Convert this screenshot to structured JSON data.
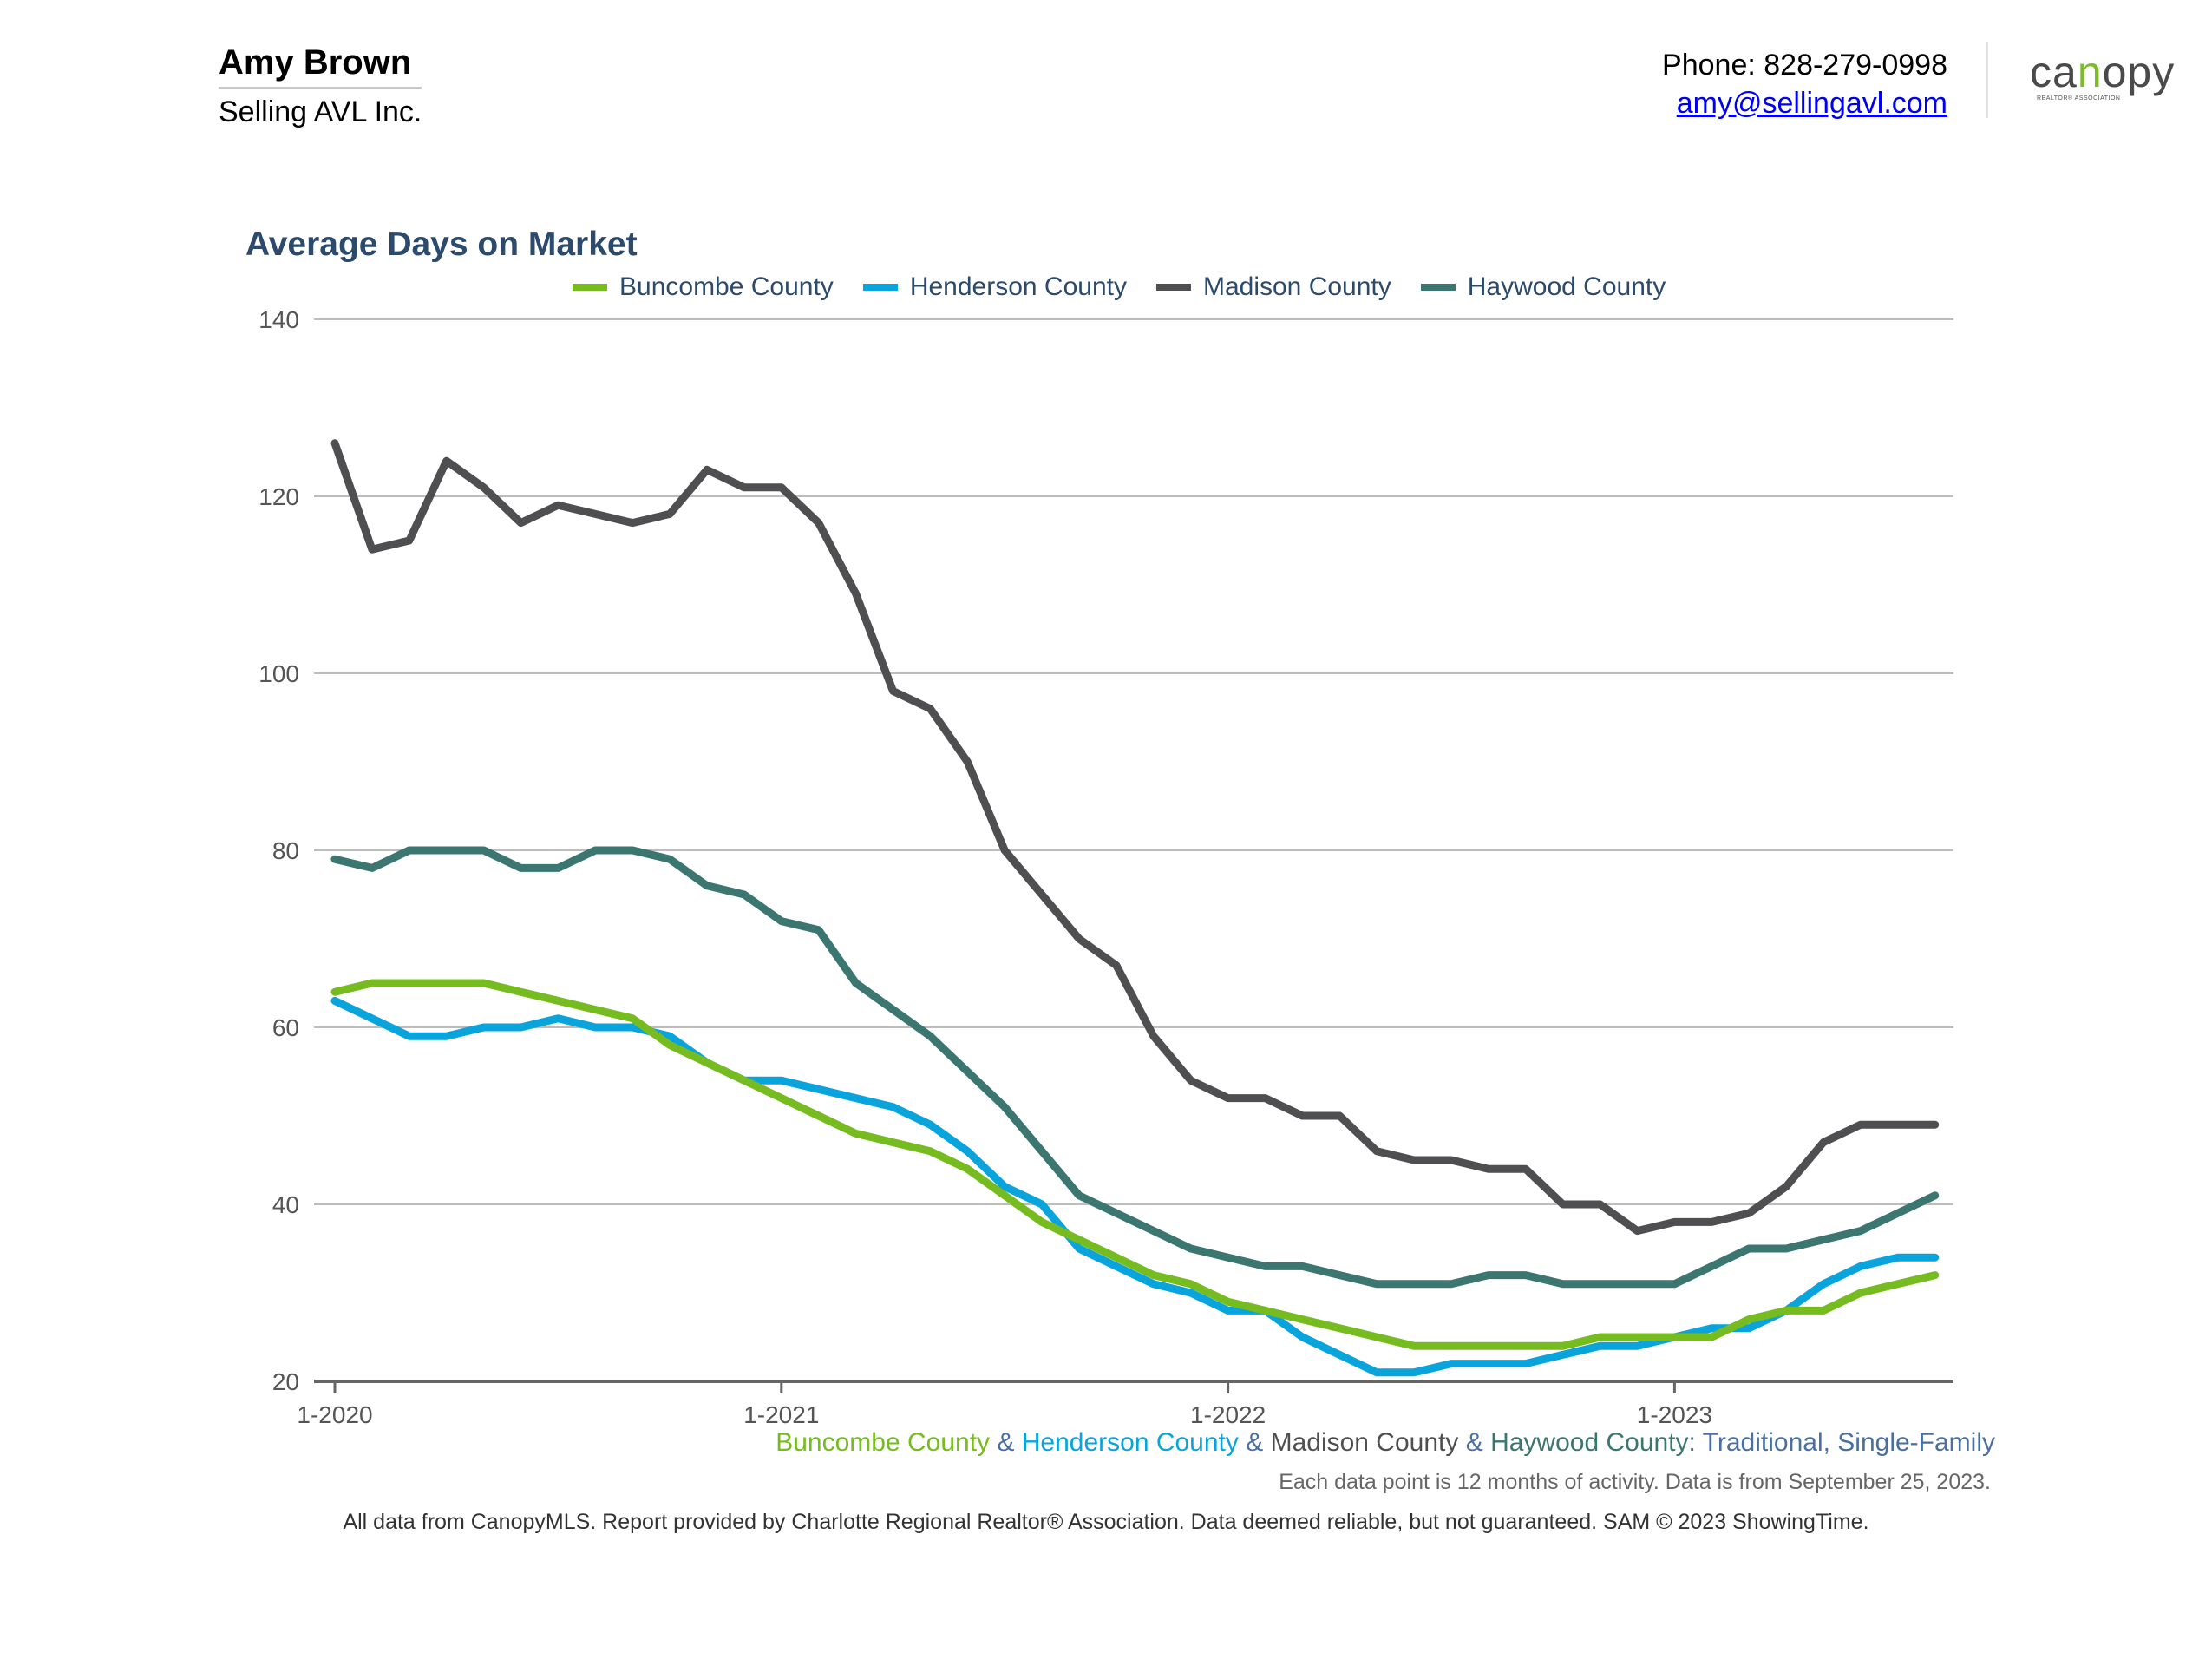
{
  "header": {
    "agent_name": "Amy Brown",
    "company": "Selling AVL Inc.",
    "phone": "Phone: 828-279-0998",
    "email": "amy@sellingavl.com",
    "logo_text_pre": "ca",
    "logo_text_accent": "n",
    "logo_text_post": "opy",
    "logo_subtext": "REALTOR® ASSOCIATION"
  },
  "colors": {
    "buncombe": "#76bc21",
    "henderson": "#0aa4dc",
    "madison": "#4f4f51",
    "haywood": "#3b7770",
    "title": "#2c4a6b"
  },
  "subtitle": {
    "parts": [
      {
        "text": "Buncombe County",
        "color": "#76bc21"
      },
      {
        "text": " & ",
        "color": "#4a6fa0"
      },
      {
        "text": "Henderson County",
        "color": "#0aa4dc"
      },
      {
        "text": " & ",
        "color": "#4a6fa0"
      },
      {
        "text": "Madison County",
        "color": "#4f4f51"
      },
      {
        "text": " & ",
        "color": "#4a6fa0"
      },
      {
        "text": "Haywood County",
        "color": "#3b7770"
      },
      {
        "text": ": Traditional, Single-Family",
        "color": "#4a6fa0"
      }
    ]
  },
  "note": "Each data point is 12 months of activity. Data is from September 25, 2023.",
  "footer": "All data from CanopyMLS. Report provided by Charlotte Regional Realtor® Association. Data deemed reliable, but not guaranteed. SAM © 2023 ShowingTime.",
  "chart_data": {
    "type": "line",
    "title": "Average Days on Market",
    "xlabel": "",
    "ylabel": "",
    "ylim": [
      20,
      140
    ],
    "yticks": [
      20,
      40,
      60,
      80,
      100,
      120,
      140
    ],
    "xticks": [
      "1-2020",
      "1-2021",
      "1-2022",
      "1-2023"
    ],
    "x": [
      "1-2020",
      "2-2020",
      "3-2020",
      "4-2020",
      "5-2020",
      "6-2020",
      "7-2020",
      "8-2020",
      "9-2020",
      "10-2020",
      "11-2020",
      "12-2020",
      "1-2021",
      "2-2021",
      "3-2021",
      "4-2021",
      "5-2021",
      "6-2021",
      "7-2021",
      "8-2021",
      "9-2021",
      "10-2021",
      "11-2021",
      "12-2021",
      "1-2022",
      "2-2022",
      "3-2022",
      "4-2022",
      "5-2022",
      "6-2022",
      "7-2022",
      "8-2022",
      "9-2022",
      "10-2022",
      "11-2022",
      "12-2022",
      "1-2023",
      "2-2023",
      "3-2023",
      "4-2023",
      "5-2023",
      "6-2023",
      "7-2023",
      "8-2023"
    ],
    "grid": true,
    "legend_position": "top",
    "series": [
      {
        "name": "Buncombe County",
        "color": "#76bc21",
        "values": [
          64,
          65,
          65,
          65,
          65,
          64,
          63,
          62,
          61,
          58,
          56,
          54,
          52,
          50,
          48,
          47,
          46,
          44,
          41,
          38,
          36,
          34,
          32,
          31,
          29,
          28,
          27,
          26,
          25,
          24,
          24,
          24,
          24,
          24,
          25,
          25,
          25,
          25,
          27,
          28,
          28,
          30,
          31,
          32
        ]
      },
      {
        "name": "Henderson County",
        "color": "#0aa4dc",
        "values": [
          63,
          61,
          59,
          59,
          60,
          60,
          61,
          60,
          60,
          59,
          56,
          54,
          54,
          53,
          52,
          51,
          49,
          46,
          42,
          40,
          35,
          33,
          31,
          30,
          28,
          28,
          25,
          23,
          21,
          21,
          22,
          22,
          22,
          23,
          24,
          24,
          25,
          26,
          26,
          28,
          31,
          33,
          34,
          34
        ]
      },
      {
        "name": "Madison County",
        "color": "#4f4f51",
        "values": [
          126,
          114,
          115,
          124,
          121,
          117,
          119,
          118,
          117,
          118,
          123,
          121,
          121,
          117,
          109,
          98,
          96,
          90,
          80,
          75,
          70,
          67,
          59,
          54,
          52,
          52,
          50,
          50,
          46,
          45,
          45,
          44,
          44,
          40,
          40,
          37,
          38,
          38,
          39,
          42,
          47,
          49,
          49,
          49
        ]
      },
      {
        "name": "Haywood County",
        "color": "#3b7770",
        "values": [
          79,
          78,
          80,
          80,
          80,
          78,
          78,
          80,
          80,
          79,
          76,
          75,
          72,
          71,
          65,
          62,
          59,
          55,
          51,
          46,
          41,
          39,
          37,
          35,
          34,
          33,
          33,
          32,
          31,
          31,
          31,
          32,
          32,
          31,
          31,
          31,
          31,
          33,
          35,
          35,
          36,
          37,
          39,
          41
        ]
      }
    ]
  }
}
